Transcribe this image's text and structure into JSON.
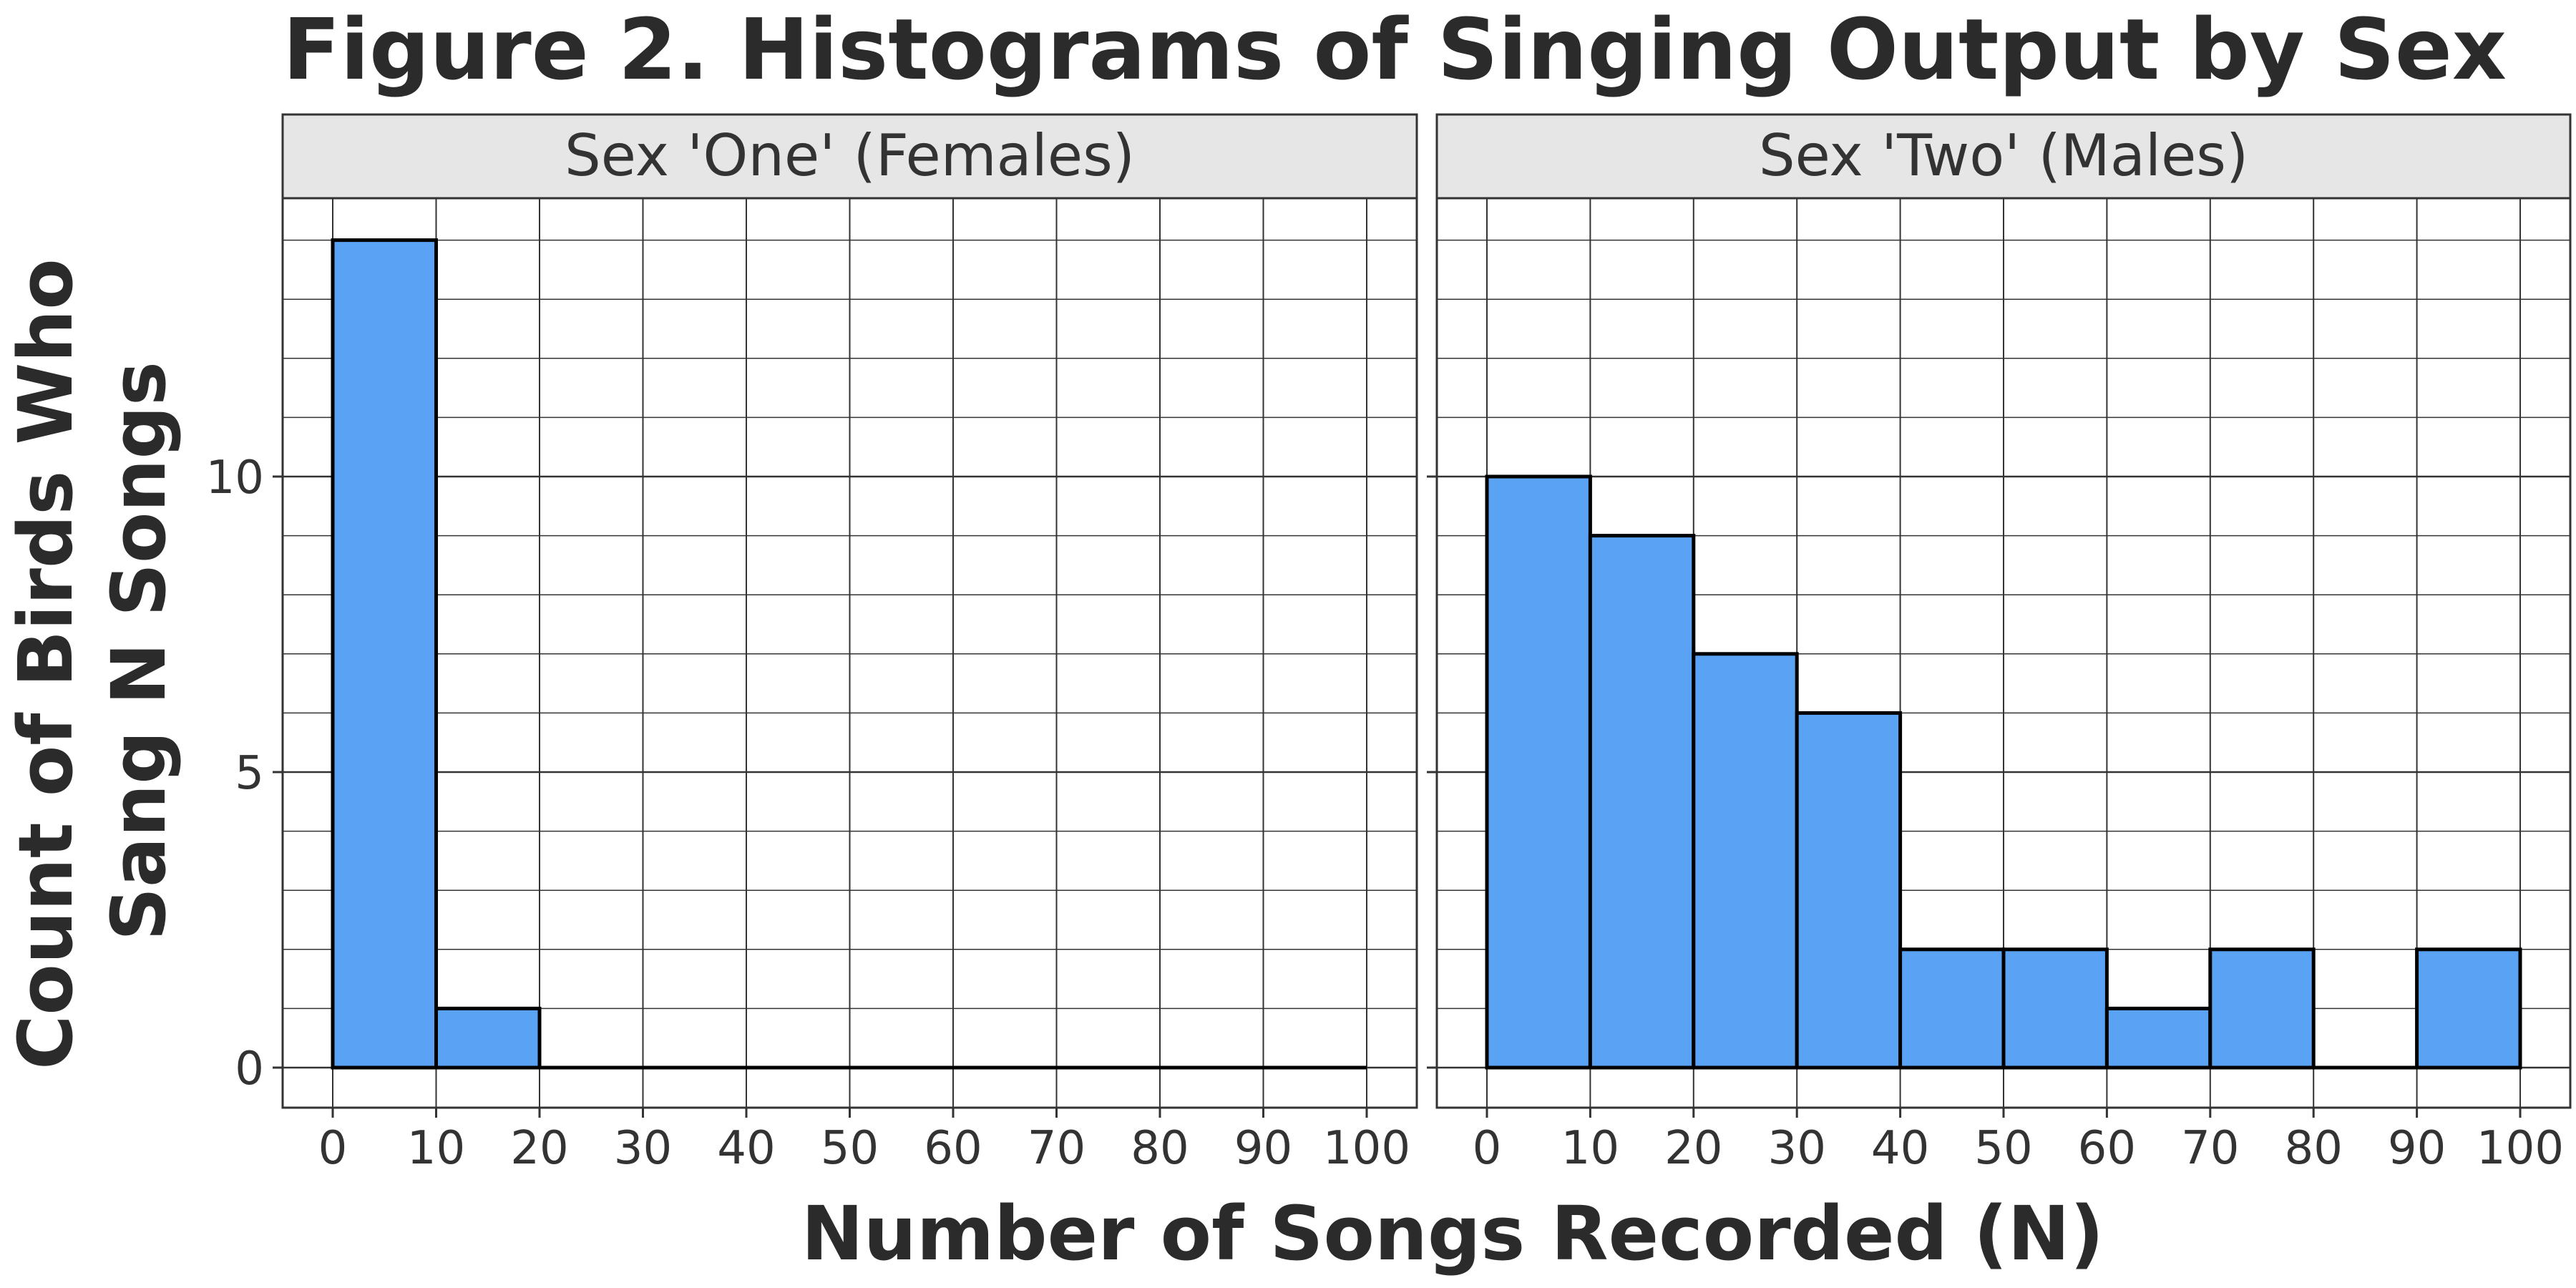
{
  "chart_data": {
    "type": "bar",
    "title": "Figure 2. Histograms of Singing Output by Sex",
    "xlabel": "Number of Songs Recorded (N)",
    "ylabel_lines": [
      "Count of Birds Who",
      "Sang N Songs"
    ],
    "xlim": [
      0,
      100
    ],
    "ylim": [
      0,
      14
    ],
    "bin_width": 10,
    "x_ticks": [
      0,
      10,
      20,
      30,
      40,
      50,
      60,
      70,
      80,
      90,
      100
    ],
    "y_ticks": [
      0,
      5,
      10
    ],
    "grid": true,
    "bar_color": "#5AA2F3",
    "bar_outline": "#000000",
    "panels": [
      {
        "label": "Sex 'One' (Females)",
        "bin_starts": [
          0,
          10,
          20,
          30,
          40,
          50,
          60,
          70,
          80,
          90
        ],
        "counts": [
          14,
          1,
          0,
          0,
          0,
          0,
          0,
          0,
          0,
          0
        ]
      },
      {
        "label": "Sex 'Two' (Males)",
        "bin_starts": [
          0,
          10,
          20,
          30,
          40,
          50,
          60,
          70,
          80,
          90
        ],
        "counts": [
          10,
          9,
          7,
          6,
          2,
          2,
          1,
          2,
          0,
          2
        ]
      }
    ]
  }
}
